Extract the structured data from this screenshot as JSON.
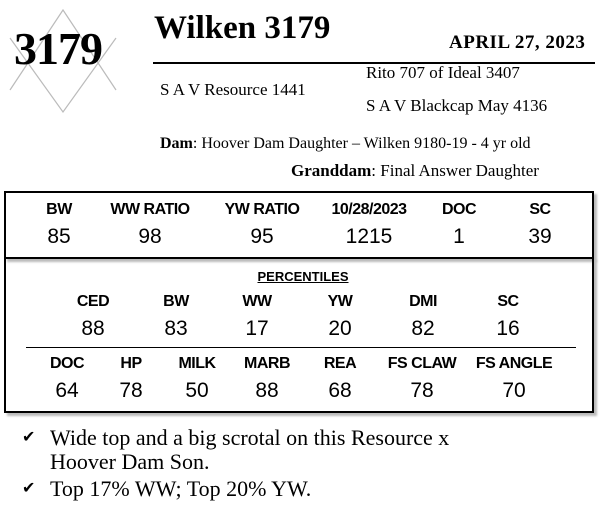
{
  "header": {
    "lot_number": "3179",
    "title": "Wilken 3179",
    "date": "APRIL  27, 2023"
  },
  "pedigree": {
    "sire": "S A V Resource 1441",
    "sire_sire": "Rito 707 of Ideal 3407",
    "sire_dam": "S A V Blackcap May 4136",
    "dam_label": "Dam",
    "dam": ": Hoover Dam Daughter – Wilken 9180-19 - 4 yr old",
    "granddam_label": "Granddam",
    "granddam": ": Final Answer Daughter"
  },
  "stats": [
    {
      "label": "BW",
      "value": "85"
    },
    {
      "label": "WW RATIO",
      "value": "98"
    },
    {
      "label": "YW RATIO",
      "value": "95"
    },
    {
      "label": "10/28/2023",
      "value": "1215"
    },
    {
      "label": "DOC",
      "value": "1"
    },
    {
      "label": "SC",
      "value": "39"
    }
  ],
  "percentiles": {
    "title": "PERCENTILES",
    "row1": [
      {
        "label": "CED",
        "value": "88"
      },
      {
        "label": "BW",
        "value": "83"
      },
      {
        "label": "WW",
        "value": "17"
      },
      {
        "label": "YW",
        "value": "20"
      },
      {
        "label": "DMI",
        "value": "82"
      },
      {
        "label": "SC",
        "value": "16"
      }
    ],
    "row2": [
      {
        "label": "DOC",
        "value": "64"
      },
      {
        "label": "HP",
        "value": "78"
      },
      {
        "label": "MILK",
        "value": "50"
      },
      {
        "label": "MARB",
        "value": "88"
      },
      {
        "label": "REA",
        "value": "68"
      },
      {
        "label": "FS CLAW",
        "value": "78"
      },
      {
        "label": "FS ANGLE",
        "value": "70"
      }
    ]
  },
  "notes": [
    {
      "icon": "check-icon",
      "line1": "Wide top and a big scrotal on this Resource x",
      "line2": "Hoover Dam Son."
    },
    {
      "icon": "check-icon",
      "line1": "Top 17% WW; Top 20% YW.",
      "line2": ""
    }
  ]
}
